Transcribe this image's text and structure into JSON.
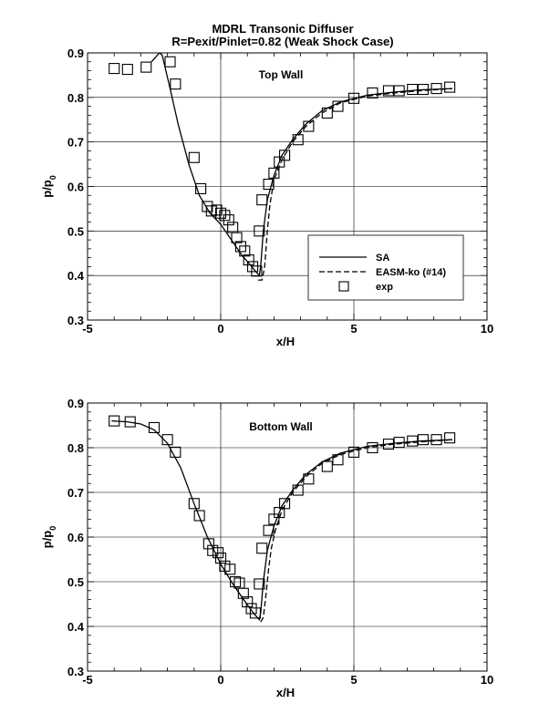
{
  "title": [
    "MDRL Transonic Diffuser",
    "R=Pexit/Pinlet=0.82 (Weak Shock Case)"
  ],
  "chart_data": [
    {
      "type": "line",
      "annotation": "Top Wall",
      "xlabel": "x/H",
      "ylabel_base": "p/p",
      "ylabel_sub": "0",
      "xlim": [
        -5,
        10
      ],
      "ylim": [
        0.3,
        0.9
      ],
      "xticks": [
        -5,
        0,
        5,
        10
      ],
      "yticks": [
        0.3,
        0.4,
        0.5,
        0.6,
        0.7,
        0.8,
        0.9
      ],
      "grid": true,
      "legend_position": "lower-right",
      "series": [
        {
          "name": "SA",
          "style": "solid",
          "x": [
            -2.6,
            -2.3,
            -2.2,
            -1.9,
            -1.6,
            -1.2,
            -0.8,
            -0.4,
            0.0,
            0.4,
            0.8,
            1.1,
            1.3,
            1.45,
            1.5,
            1.6,
            1.75,
            2.0,
            2.3,
            2.7,
            3.2,
            3.8,
            4.5,
            5.5,
            6.5,
            7.5,
            8.7
          ],
          "y": [
            0.88,
            0.9,
            0.895,
            0.82,
            0.74,
            0.65,
            0.58,
            0.54,
            0.515,
            0.48,
            0.445,
            0.425,
            0.41,
            0.4,
            0.42,
            0.5,
            0.57,
            0.625,
            0.67,
            0.705,
            0.74,
            0.77,
            0.79,
            0.805,
            0.812,
            0.817,
            0.82
          ]
        },
        {
          "name": "EASM-ko (#14)",
          "style": "dashed",
          "x": [
            1.4,
            1.55,
            1.65,
            1.75,
            1.85,
            2.0,
            2.3,
            2.7,
            3.2,
            3.8,
            4.5,
            5.5,
            6.5,
            7.5,
            8.7
          ],
          "y": [
            0.39,
            0.39,
            0.42,
            0.5,
            0.56,
            0.615,
            0.66,
            0.7,
            0.735,
            0.765,
            0.788,
            0.803,
            0.81,
            0.815,
            0.82
          ]
        },
        {
          "name": "exp",
          "style": "square",
          "x": [
            -4.0,
            -3.5,
            -2.8,
            -1.9,
            -1.7,
            -1.0,
            -0.75,
            -0.5,
            -0.35,
            -0.15,
            0.0,
            0.15,
            0.3,
            0.45,
            0.6,
            0.75,
            0.9,
            1.05,
            1.2,
            1.35,
            1.45,
            1.55,
            1.8,
            2.0,
            2.2,
            2.4,
            2.9,
            3.3,
            4.0,
            4.4,
            5.0,
            5.7,
            6.3,
            6.7,
            7.2,
            7.6,
            8.1,
            8.6
          ],
          "y": [
            0.865,
            0.863,
            0.868,
            0.88,
            0.83,
            0.665,
            0.595,
            0.555,
            0.545,
            0.547,
            0.54,
            0.535,
            0.525,
            0.508,
            0.485,
            0.465,
            0.455,
            0.435,
            0.42,
            0.41,
            0.5,
            0.57,
            0.605,
            0.63,
            0.655,
            0.67,
            0.705,
            0.735,
            0.765,
            0.78,
            0.798,
            0.81,
            0.815,
            0.815,
            0.818,
            0.818,
            0.82,
            0.823
          ]
        }
      ]
    },
    {
      "type": "line",
      "annotation": "Bottom Wall",
      "xlabel": "x/H",
      "ylabel_base": "p/p",
      "ylabel_sub": "0",
      "xlim": [
        -5,
        10
      ],
      "ylim": [
        0.3,
        0.9
      ],
      "xticks": [
        -5,
        0,
        5,
        10
      ],
      "yticks": [
        0.3,
        0.4,
        0.5,
        0.6,
        0.7,
        0.8,
        0.9
      ],
      "grid": true,
      "series": [
        {
          "name": "SA",
          "style": "solid",
          "x": [
            -4.1,
            -3.5,
            -3.0,
            -2.5,
            -2.0,
            -1.5,
            -1.0,
            -0.5,
            0.0,
            0.4,
            0.8,
            1.1,
            1.3,
            1.45,
            1.5,
            1.6,
            1.75,
            2.0,
            2.3,
            2.7,
            3.2,
            3.8,
            4.5,
            5.5,
            6.5,
            7.5,
            8.7
          ],
          "y": [
            0.86,
            0.858,
            0.853,
            0.84,
            0.81,
            0.755,
            0.675,
            0.6,
            0.54,
            0.5,
            0.465,
            0.44,
            0.425,
            0.415,
            0.43,
            0.5,
            0.57,
            0.625,
            0.67,
            0.705,
            0.74,
            0.768,
            0.788,
            0.803,
            0.81,
            0.815,
            0.818
          ]
        },
        {
          "name": "EASM-ko (#14)",
          "style": "dashed",
          "x": [
            1.5,
            1.6,
            1.7,
            1.8,
            1.9,
            2.05,
            2.3,
            2.7,
            3.2,
            3.8,
            4.5,
            5.5,
            6.5,
            7.5,
            8.7
          ],
          "y": [
            0.41,
            0.42,
            0.47,
            0.53,
            0.575,
            0.615,
            0.66,
            0.7,
            0.735,
            0.765,
            0.785,
            0.8,
            0.808,
            0.813,
            0.818
          ]
        },
        {
          "name": "exp",
          "style": "square",
          "x": [
            -4.0,
            -3.4,
            -2.5,
            -2.0,
            -1.7,
            -1.0,
            -0.8,
            -0.45,
            -0.3,
            -0.1,
            0.0,
            0.15,
            0.35,
            0.55,
            0.7,
            0.85,
            1.0,
            1.15,
            1.3,
            1.45,
            1.55,
            1.8,
            2.0,
            2.2,
            2.4,
            2.9,
            3.3,
            4.0,
            4.4,
            5.0,
            5.7,
            6.3,
            6.7,
            7.2,
            7.6,
            8.1,
            8.6
          ],
          "y": [
            0.86,
            0.858,
            0.845,
            0.818,
            0.79,
            0.675,
            0.648,
            0.585,
            0.57,
            0.565,
            0.553,
            0.535,
            0.528,
            0.5,
            0.497,
            0.474,
            0.455,
            0.44,
            0.43,
            0.495,
            0.575,
            0.615,
            0.64,
            0.655,
            0.675,
            0.705,
            0.73,
            0.758,
            0.773,
            0.79,
            0.8,
            0.808,
            0.812,
            0.815,
            0.818,
            0.818,
            0.822
          ]
        }
      ]
    }
  ]
}
